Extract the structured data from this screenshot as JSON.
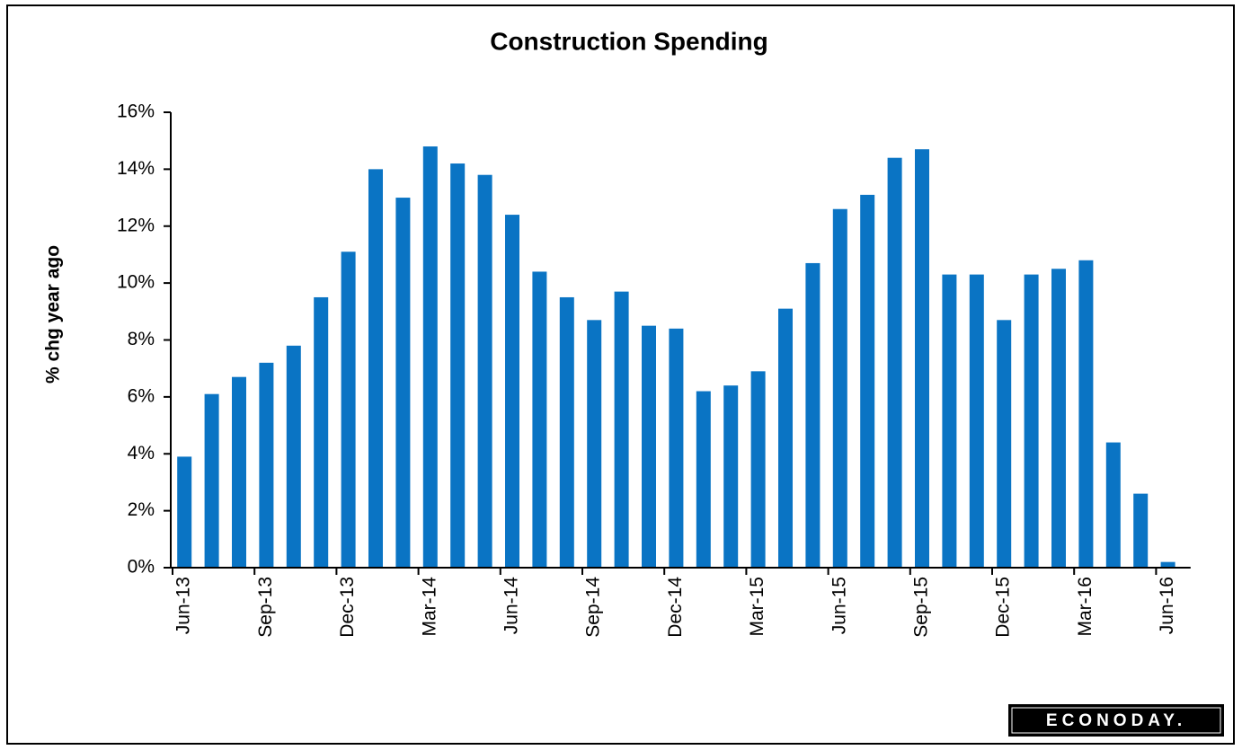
{
  "chart_data": {
    "type": "bar",
    "title": "Construction  Spending",
    "y_label": "% chg year ago",
    "logo": "ECONODAY.",
    "color": "#0a74c4",
    "categories": [
      "Jun-13",
      null,
      null,
      "Sep-13",
      null,
      null,
      "Dec-13",
      null,
      null,
      "Mar-14",
      null,
      null,
      "Jun-14",
      null,
      null,
      "Sep-14",
      null,
      null,
      "Dec-14",
      null,
      null,
      "Mar-15",
      null,
      null,
      "Jun-15",
      null,
      null,
      "Sep-15",
      null,
      null,
      "Dec-15",
      null,
      null,
      "Mar-16",
      null,
      null,
      "Jun-16"
    ],
    "values": [
      3.9,
      6.1,
      6.7,
      7.2,
      7.8,
      9.5,
      11.1,
      14.0,
      13.0,
      14.8,
      14.2,
      13.8,
      12.4,
      10.4,
      9.5,
      8.7,
      9.7,
      8.5,
      8.4,
      6.2,
      6.4,
      6.9,
      9.1,
      10.7,
      12.6,
      13.1,
      14.4,
      14.7,
      10.3,
      10.3,
      8.7,
      10.3,
      10.5,
      10.8,
      4.4,
      2.6,
      0.2
    ],
    "ylim": [
      0,
      16
    ],
    "yticks": [
      {
        "value": 0,
        "label": "0%"
      },
      {
        "value": 2,
        "label": "2%"
      },
      {
        "value": 4,
        "label": "4%"
      },
      {
        "value": 6,
        "label": "6%"
      },
      {
        "value": 8,
        "label": "8%"
      },
      {
        "value": 10,
        "label": "10%"
      },
      {
        "value": 12,
        "label": "12%"
      },
      {
        "value": 14,
        "label": "14%"
      },
      {
        "value": 16,
        "label": "16%"
      }
    ],
    "grid": false
  }
}
